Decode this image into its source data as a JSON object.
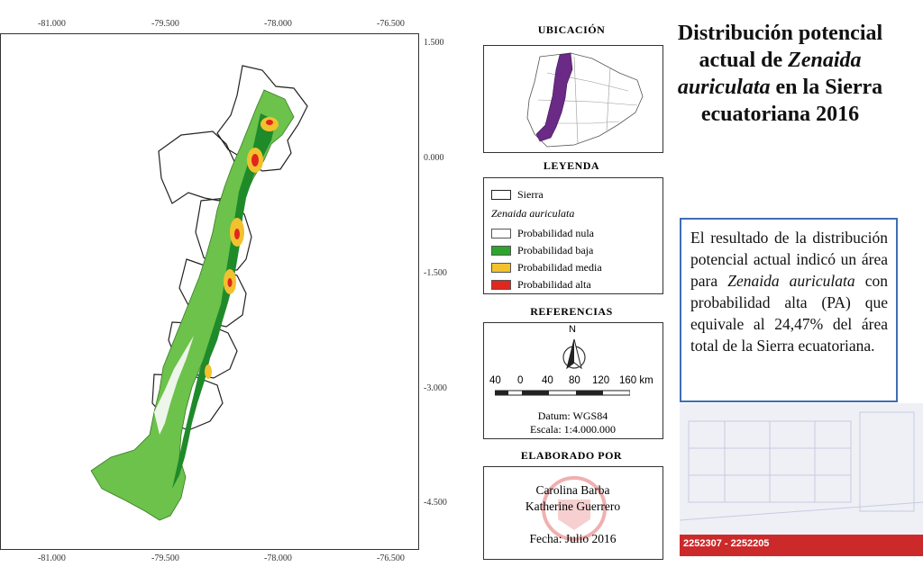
{
  "map": {
    "lon_labels": [
      "-81.000",
      "-79.500",
      "-78.000",
      "-76.500"
    ],
    "lat_labels": [
      "1.500",
      "0.000",
      "-1.500",
      "-3.000",
      "-4.500"
    ]
  },
  "ubicacion": {
    "title": "UBICACIÓN"
  },
  "legend": {
    "title": "LEYENDA",
    "sierra_label": "Sierra",
    "species_label": "Zenaida auriculata",
    "items": [
      {
        "label": "Probabilidad nula",
        "color": "#ffffff"
      },
      {
        "label": "Probabilidad baja",
        "color": "#2da52d"
      },
      {
        "label": "Probabilidad media",
        "color": "#f2c12e"
      },
      {
        "label": "Probabilidad alta",
        "color": "#e0261e"
      }
    ]
  },
  "referencias": {
    "title": "REFERENCIAS",
    "north": "N",
    "scale_labels": [
      "40",
      "0",
      "40",
      "80",
      "120",
      "160 km"
    ],
    "datum": "Datum: WGS84",
    "escala": "Escala: 1:4.000.000"
  },
  "elaborado": {
    "title": "ELABORADO POR",
    "author1": "Carolina Barba",
    "author2": "Katherine Guerrero",
    "fecha": "Fecha: Julio 2016"
  },
  "title": {
    "line1": "Distribución potencial",
    "line2a": "actual de ",
    "line2b": "Zenaida",
    "line3a": "auriculata",
    "line3b": " en la Sierra",
    "line4": "ecuatoriana 2016"
  },
  "result": {
    "text_a": "El resultado de la distribución potencial actual indicó un área para ",
    "text_species": "Zenaida auriculata",
    "text_b": " con probabilidad alta (PA) que equivale al 24,47% del área total de la Sierra ecuatoriana."
  },
  "footer": {
    "phone": "2252307 - 2252205"
  }
}
